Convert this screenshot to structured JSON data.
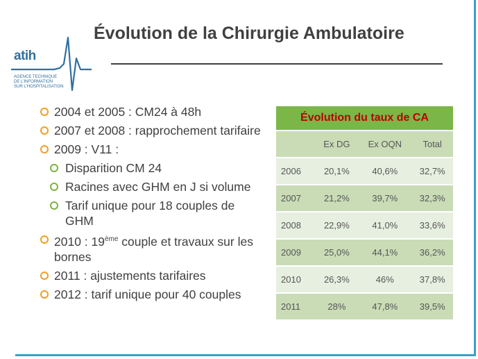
{
  "slide": {
    "title": "Évolution de la Chirurgie Ambulatoire"
  },
  "logo": {
    "name": "atih",
    "subtitle_lines": [
      "AGENCE TECHNIQUE",
      "DE L'INFORMATION",
      "SUR L'HOSPITALISATION"
    ]
  },
  "bullets": {
    "b1": "2004 et 2005 : CM24 à 48h",
    "b2": "2007 et 2008 : rapprochement tarifaire",
    "b3": "2009 : V11 :",
    "b3_sub1": "Disparition CM 24",
    "b3_sub2": "Racines avec GHM en J si volume",
    "b3_sub3": "Tarif unique pour 18 couples de GHM",
    "b4_pre": "2010 : 19",
    "b4_sup": "ème",
    "b4_post": " couple et travaux sur les bornes",
    "b5": "2011 : ajustements tarifaires",
    "b6": "2012 : tarif unique pour 40 couples"
  },
  "table": {
    "caption": "Évolution du taux de CA",
    "headers": [
      "",
      "Ex DG",
      "Ex OQN",
      "Total"
    ],
    "rows": [
      [
        "2006",
        "20,1%",
        "40,6%",
        "32,7%"
      ],
      [
        "2007",
        "21,2%",
        "39,7%",
        "32,3%"
      ],
      [
        "2008",
        "22,9%",
        "41,0%",
        "33,6%"
      ],
      [
        "2009",
        "25,0%",
        "44,1%",
        "36,2%"
      ],
      [
        "2010",
        "26,3%",
        "46%",
        "37,8%"
      ],
      [
        "2011",
        "28%",
        "47,8%",
        "39,5%"
      ]
    ]
  },
  "colors": {
    "accent_frame": "#3aa0c8",
    "table_caption_bg": "#7ab648",
    "table_caption_text": "#c00000",
    "bullet_primary": "#f0a020",
    "bullet_secondary": "#7cb342"
  }
}
